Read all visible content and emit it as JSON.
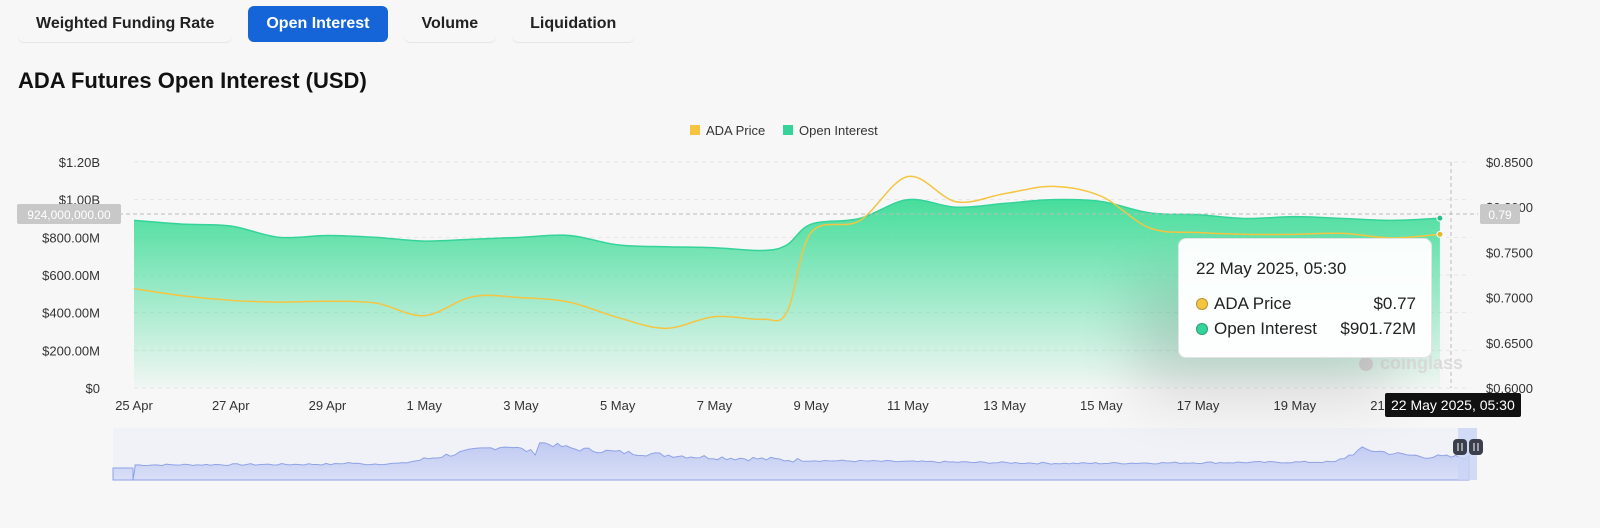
{
  "tabs": [
    {
      "label": "Weighted Funding Rate",
      "active": false
    },
    {
      "label": "Open Interest",
      "active": true
    },
    {
      "label": "Volume",
      "active": false
    },
    {
      "label": "Liquidation",
      "active": false
    }
  ],
  "page_title": "ADA Futures Open Interest (USD)",
  "colors": {
    "accent": "#1565d8",
    "open_interest": "#34d399",
    "ada_price": "#f5c542"
  },
  "crosshair": {
    "left_value": "924,000,000.00",
    "right_value": "0.79",
    "time": "22 May 2025, 05:30"
  },
  "tooltip": {
    "time": "22 May 2025, 05:30",
    "rows": [
      {
        "label": "ADA Price",
        "value": "$0.77",
        "color": "#f5c542"
      },
      {
        "label": "Open Interest",
        "value": "$901.72M",
        "color": "#34d399"
      }
    ]
  },
  "watermark": "coinglass",
  "chart_data": {
    "type": "area",
    "legend": [
      "ADA Price",
      "Open Interest"
    ],
    "legend_position": "top-center",
    "x_ticks": [
      "25 Apr",
      "27 Apr",
      "29 Apr",
      "1 May",
      "3 May",
      "5 May",
      "7 May",
      "9 May",
      "11 May",
      "13 May",
      "15 May",
      "17 May",
      "19 May",
      "21 May"
    ],
    "y_left_ticks": [
      "$0",
      "$200.00M",
      "$400.00M",
      "$600.00M",
      "$800.00M",
      "$1.00B",
      "$1.20B"
    ],
    "y_right_ticks": [
      "$0.6000",
      "$0.6500",
      "$0.7000",
      "$0.7500",
      "$0.8000",
      "$0.8500"
    ],
    "ylim_left": [
      0,
      1200000000
    ],
    "ylim_right": [
      0.6,
      0.85
    ],
    "grid": true,
    "series": [
      {
        "name": "Open Interest",
        "axis": "left",
        "unit": "USD",
        "x": [
          "2025-04-25",
          "2025-04-26",
          "2025-04-27",
          "2025-04-28",
          "2025-04-29",
          "2025-04-30",
          "2025-05-01",
          "2025-05-02",
          "2025-05-03",
          "2025-05-04",
          "2025-05-05",
          "2025-05-06",
          "2025-05-07",
          "2025-05-08",
          "2025-05-08T12:00",
          "2025-05-09",
          "2025-05-10",
          "2025-05-11",
          "2025-05-12",
          "2025-05-13",
          "2025-05-14",
          "2025-05-15",
          "2025-05-16",
          "2025-05-17",
          "2025-05-18",
          "2025-05-19",
          "2025-05-20",
          "2025-05-21",
          "2025-05-22"
        ],
        "values": [
          890000000,
          870000000,
          860000000,
          800000000,
          810000000,
          800000000,
          780000000,
          790000000,
          800000000,
          810000000,
          760000000,
          750000000,
          745000000,
          730000000,
          760000000,
          870000000,
          900000000,
          1000000000,
          960000000,
          980000000,
          1000000000,
          990000000,
          930000000,
          920000000,
          900000000,
          910000000,
          900000000,
          890000000,
          901720000
        ]
      },
      {
        "name": "ADA Price",
        "axis": "right",
        "unit": "USD",
        "x": [
          "2025-04-25",
          "2025-04-26",
          "2025-04-27",
          "2025-04-28",
          "2025-04-29",
          "2025-04-30",
          "2025-05-01",
          "2025-05-02",
          "2025-05-03",
          "2025-05-04",
          "2025-05-05",
          "2025-05-06",
          "2025-05-07",
          "2025-05-08",
          "2025-05-08T12:00",
          "2025-05-09",
          "2025-05-10",
          "2025-05-11",
          "2025-05-12",
          "2025-05-13",
          "2025-05-14",
          "2025-05-15",
          "2025-05-16",
          "2025-05-17",
          "2025-05-18",
          "2025-05-19",
          "2025-05-20",
          "2025-05-21",
          "2025-05-22"
        ],
        "values": [
          0.71,
          0.702,
          0.697,
          0.695,
          0.696,
          0.694,
          0.68,
          0.701,
          0.7,
          0.695,
          0.678,
          0.666,
          0.679,
          0.676,
          0.684,
          0.772,
          0.785,
          0.834,
          0.806,
          0.815,
          0.823,
          0.812,
          0.777,
          0.772,
          0.77,
          0.77,
          0.771,
          0.766,
          0.77
        ]
      }
    ]
  }
}
